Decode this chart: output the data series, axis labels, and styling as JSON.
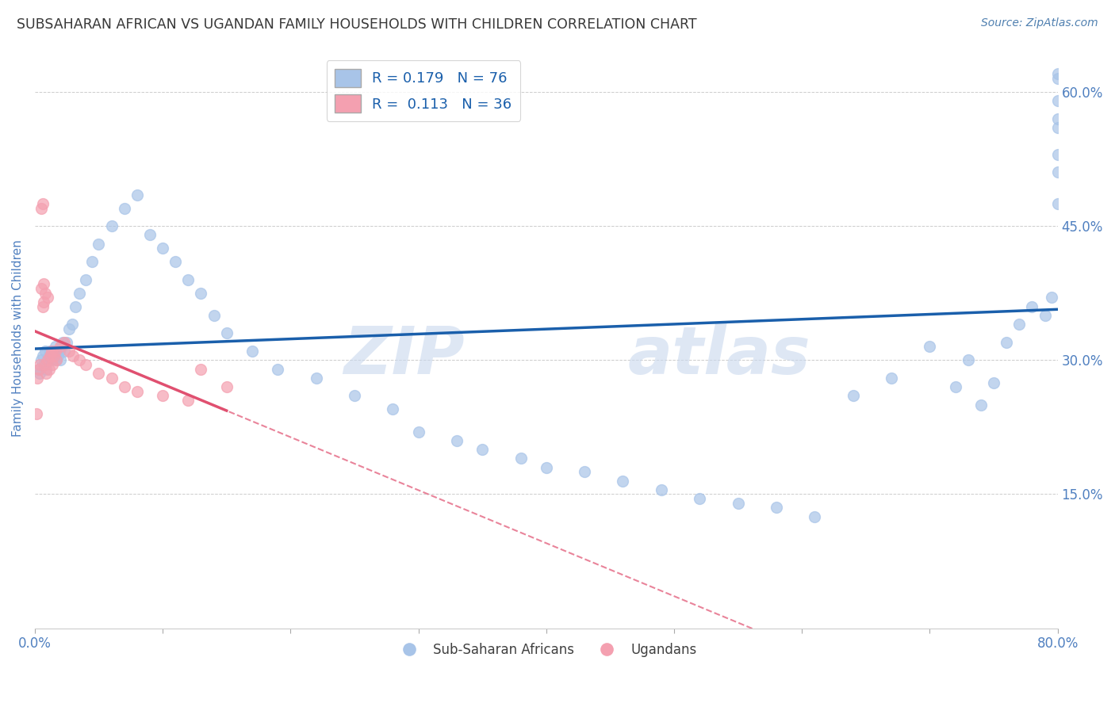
{
  "title": "SUBSAHARAN AFRICAN VS UGANDAN FAMILY HOUSEHOLDS WITH CHILDREN CORRELATION CHART",
  "source": "Source: ZipAtlas.com",
  "ylabel": "Family Households with Children",
  "xlim": [
    0.0,
    80.0
  ],
  "ylim": [
    0.0,
    65.0
  ],
  "xticks": [
    0,
    10,
    20,
    30,
    40,
    50,
    60,
    70,
    80
  ],
  "xtick_labels": [
    "0.0%",
    "",
    "",
    "",
    "",
    "",
    "",
    "",
    "80.0%"
  ],
  "yticks": [
    0,
    15,
    30,
    45,
    60
  ],
  "ytick_labels": [
    "",
    "15.0%",
    "30.0%",
    "45.0%",
    "60.0%"
  ],
  "R_blue": 0.179,
  "N_blue": 76,
  "R_pink": 0.113,
  "N_pink": 36,
  "legend_label_blue": "Sub-Saharan Africans",
  "legend_label_pink": "Ugandans",
  "blue_color": "#A8C4E8",
  "pink_color": "#F4A0B0",
  "trend_blue_color": "#1A5FAB",
  "trend_pink_color": "#E05070",
  "title_color": "#404040",
  "tick_color": "#5080C0",
  "legend_text_color": "#1A5FAB",
  "blue_x": [
    0.3,
    0.4,
    0.5,
    0.6,
    0.7,
    0.8,
    0.9,
    1.0,
    1.1,
    1.2,
    1.3,
    1.4,
    1.5,
    1.6,
    1.7,
    1.8,
    1.9,
    2.0,
    2.1,
    2.2,
    2.3,
    2.5,
    2.7,
    2.9,
    3.2,
    3.5,
    4.0,
    4.5,
    5.0,
    6.0,
    7.0,
    8.0,
    9.0,
    10.0,
    11.0,
    12.0,
    13.0,
    14.0,
    15.0,
    17.0,
    19.0,
    22.0,
    25.0,
    28.0,
    30.0,
    33.0,
    35.0,
    38.0,
    40.0,
    43.0,
    46.0,
    49.0,
    52.0,
    55.0,
    58.0,
    61.0,
    64.0,
    67.0,
    70.0,
    72.0,
    73.0,
    74.0,
    75.0,
    76.0,
    77.0,
    78.0,
    79.0,
    79.5,
    80.0,
    80.0,
    80.0,
    80.0,
    80.0,
    80.0,
    80.0,
    80.0
  ],
  "blue_y": [
    29.0,
    28.5,
    30.0,
    30.5,
    29.5,
    31.0,
    29.0,
    30.0,
    30.5,
    31.0,
    30.0,
    30.5,
    31.0,
    31.5,
    30.0,
    30.5,
    31.0,
    30.0,
    31.5,
    32.0,
    31.0,
    32.0,
    33.5,
    34.0,
    36.0,
    37.5,
    39.0,
    41.0,
    43.0,
    45.0,
    47.0,
    48.5,
    44.0,
    42.5,
    41.0,
    39.0,
    37.5,
    35.0,
    33.0,
    31.0,
    29.0,
    28.0,
    26.0,
    24.5,
    22.0,
    21.0,
    20.0,
    19.0,
    18.0,
    17.5,
    16.5,
    15.5,
    14.5,
    14.0,
    13.5,
    12.5,
    26.0,
    28.0,
    31.5,
    27.0,
    30.0,
    25.0,
    27.5,
    32.0,
    34.0,
    36.0,
    35.0,
    37.0,
    57.0,
    62.0,
    51.0,
    56.0,
    47.5,
    53.0,
    59.0,
    61.5
  ],
  "pink_x": [
    0.1,
    0.2,
    0.3,
    0.4,
    0.5,
    0.5,
    0.6,
    0.6,
    0.7,
    0.7,
    0.8,
    0.8,
    0.9,
    1.0,
    1.0,
    1.1,
    1.2,
    1.3,
    1.4,
    1.5,
    1.6,
    1.7,
    2.0,
    2.3,
    2.7,
    3.0,
    3.5,
    4.0,
    5.0,
    6.0,
    7.0,
    8.0,
    10.0,
    12.0,
    13.0,
    15.0
  ],
  "pink_y": [
    24.0,
    28.0,
    29.0,
    29.5,
    38.0,
    47.0,
    47.5,
    36.0,
    38.5,
    36.5,
    37.5,
    29.5,
    28.5,
    30.0,
    37.0,
    29.0,
    30.5,
    31.0,
    29.5,
    30.5,
    31.0,
    30.0,
    31.5,
    32.0,
    31.0,
    30.5,
    30.0,
    29.5,
    28.5,
    28.0,
    27.0,
    26.5,
    26.0,
    25.5,
    29.0,
    27.0
  ]
}
